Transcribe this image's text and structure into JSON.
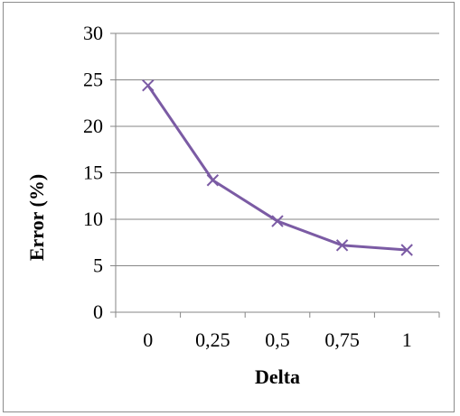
{
  "chart_data": {
    "type": "line",
    "title": "",
    "xlabel": "Delta",
    "ylabel": "Error (%)",
    "categories": [
      "0",
      "0,25",
      "0,5",
      "0,75",
      "1"
    ],
    "series": [
      {
        "values": [
          24.4,
          14.2,
          9.8,
          7.2,
          6.7
        ],
        "color": "#7B5BA4",
        "marker": "x"
      }
    ],
    "ylim": [
      0,
      30
    ],
    "yticks": [
      0,
      5,
      10,
      15,
      20,
      25,
      30
    ],
    "grid": "horizontal",
    "legend": "none"
  }
}
